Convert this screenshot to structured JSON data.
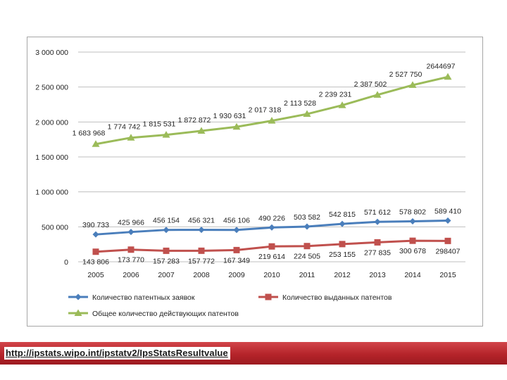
{
  "chart_data": {
    "type": "line",
    "title": "",
    "xlabel": "",
    "ylabel": "",
    "categories": [
      "2005",
      "2006",
      "2007",
      "2008",
      "2009",
      "2010",
      "2011",
      "2012",
      "2013",
      "2014",
      "2015"
    ],
    "ylim": [
      0,
      3000000
    ],
    "y_ticks": [
      {
        "value": 0,
        "label": "0"
      },
      {
        "value": 500000,
        "label": "500 000"
      },
      {
        "value": 1000000,
        "label": "1 000 000"
      },
      {
        "value": 1500000,
        "label": "1 500 000"
      },
      {
        "value": 2000000,
        "label": "2 000 000"
      },
      {
        "value": 2500000,
        "label": "2 500 000"
      },
      {
        "value": 3000000,
        "label": "3 000 000"
      }
    ],
    "grid": true,
    "legend_position": "bottom",
    "series": [
      {
        "name": "Количество патентных заявок",
        "color": "#4a7ebb",
        "marker": "diamond",
        "values": [
          390733,
          425966,
          456154,
          456321,
          456106,
          490226,
          503582,
          542815,
          571612,
          578802,
          589410
        ],
        "labels": [
          "390 733",
          "425 966",
          "456 154",
          "456 321",
          "456 106",
          "490 226",
          "503 582",
          "542 815",
          "571 612",
          "578 802",
          "589 410"
        ]
      },
      {
        "name": "Количество выданных патентов",
        "color": "#c0504d",
        "marker": "square",
        "values": [
          143806,
          173770,
          157283,
          157772,
          167349,
          219614,
          224505,
          253155,
          277835,
          300678,
          298407
        ],
        "labels": [
          "143 806",
          "173 770",
          "157 283",
          "157 772",
          "167 349",
          "219 614",
          "224 505",
          "253 155",
          "277 835",
          "300 678",
          "298407"
        ]
      },
      {
        "name": "Общее количество действующих патентов",
        "color": "#9bbb59",
        "marker": "triangle",
        "values": [
          1683968,
          1774742,
          1815531,
          1872872,
          1930631,
          2017318,
          2113528,
          2239231,
          2387502,
          2527750,
          2644697
        ],
        "labels": [
          "1 683 968",
          "1 774 742",
          "1 815 531",
          "1 872 872",
          "1 930 631",
          "2 017 318",
          "2 113 528",
          "2 239 231",
          "2 387 502",
          "2 527 750",
          "2644697"
        ]
      }
    ]
  },
  "footer": {
    "source_url": "http://ipstats.wipo.int/ipstatv2/IpsStatsResultvalue"
  }
}
